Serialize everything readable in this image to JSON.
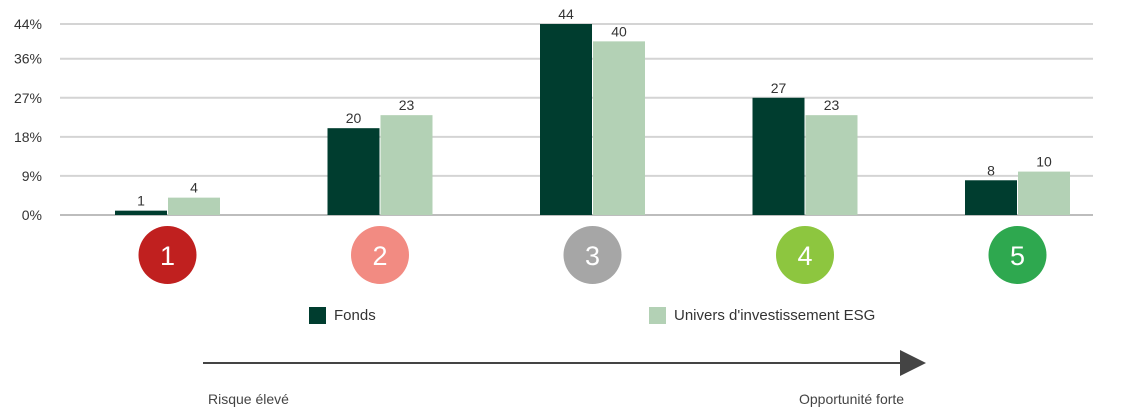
{
  "chart_data": {
    "type": "bar",
    "categories": [
      "1",
      "2",
      "3",
      "4",
      "5"
    ],
    "series": [
      {
        "name": "Fonds",
        "values": [
          1,
          20,
          44,
          27,
          8
        ],
        "color": "#003d2f"
      },
      {
        "name": "Univers d'investissement ESG",
        "values": [
          4,
          23,
          40,
          23,
          10
        ],
        "color": "#b3d1b5"
      }
    ],
    "y_ticks": [
      "0%",
      "9%",
      "18%",
      "27%",
      "36%",
      "44%"
    ],
    "y_tick_values": [
      0,
      9,
      18,
      27,
      36,
      44
    ],
    "ylim": [
      0,
      44
    ],
    "grid": true,
    "category_colors": [
      "#c0201f",
      "#f28b82",
      "#a6a6a6",
      "#8dc63f",
      "#2ea84f"
    ],
    "legend_position": "bottom"
  },
  "legend": {
    "fonds": "Fonds",
    "univers": "Univers d'investissement ESG"
  },
  "scale": {
    "left": "Risque élevé",
    "right": "Opportunité forte"
  }
}
